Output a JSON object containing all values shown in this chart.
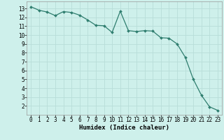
{
  "x": [
    0,
    1,
    2,
    3,
    4,
    5,
    6,
    7,
    8,
    9,
    10,
    11,
    12,
    13,
    14,
    15,
    16,
    17,
    18,
    19,
    20,
    21,
    22,
    23
  ],
  "y": [
    13.2,
    12.8,
    12.6,
    12.2,
    12.65,
    12.55,
    12.25,
    11.7,
    11.1,
    11.05,
    10.3,
    12.7,
    10.5,
    10.4,
    10.5,
    10.45,
    9.7,
    9.65,
    9.0,
    7.5,
    5.0,
    3.2,
    1.9,
    1.5
  ],
  "line_color": "#2e7d6e",
  "marker": "D",
  "marker_size": 2.0,
  "bg_color": "#cef0eb",
  "grid_color": "#b8ddd9",
  "xlabel": "Humidex (Indice chaleur)",
  "xlim": [
    -0.5,
    23.5
  ],
  "ylim": [
    1.0,
    13.8
  ],
  "xticks": [
    0,
    1,
    2,
    3,
    4,
    5,
    6,
    7,
    8,
    9,
    10,
    11,
    12,
    13,
    14,
    15,
    16,
    17,
    18,
    19,
    20,
    21,
    22,
    23
  ],
  "yticks": [
    2,
    3,
    4,
    5,
    6,
    7,
    8,
    9,
    10,
    11,
    12,
    13
  ],
  "tick_fontsize": 5.5,
  "xlabel_fontsize": 6.5,
  "linewidth": 0.9
}
